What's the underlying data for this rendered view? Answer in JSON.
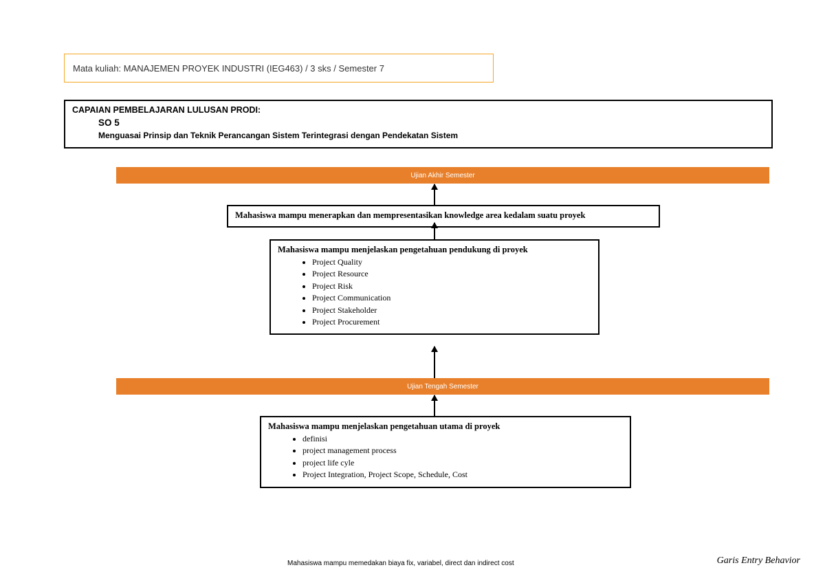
{
  "colors": {
    "header_border": "#f5a623",
    "orange_bar_bg": "#e8802b",
    "orange_bar_text": "#ffffff",
    "box_border": "#000000",
    "page_bg": "#ffffff"
  },
  "header": {
    "course_line": "Mata kuliah: MANAJEMEN PROYEK INDUSTRI (IEG463) / 3 sks / Semester 7"
  },
  "cplp": {
    "title": "CAPAIAN PEMBELAJARAN LULUSAN PRODI:",
    "so": "SO 5",
    "desc": "Menguasai Prinsip dan Teknik Perancangan Sistem Terintegrasi dengan Pendekatan Sistem"
  },
  "bars": {
    "uas": "Ujian Akhir Semester",
    "uts": "Ujian Tengah Semester"
  },
  "boxes": {
    "apply": {
      "text": "Mahasiswa mampu menerapkan dan mempresentasikan knowledge area kedalam suatu proyek"
    },
    "support": {
      "title": "Mahasiswa mampu menjelaskan pengetahuan pendukung di proyek",
      "bullets": [
        "Project Quality",
        "Project Resource",
        "Project Risk",
        "Project Communication",
        "Project Stakeholder",
        "Project Procurement"
      ]
    },
    "main": {
      "title": "Mahasiswa mampu menjelaskan pengetahuan utama di proyek",
      "bullets": [
        "definisi",
        "project management process",
        "project life cyle",
        "Project Integration, Project Scope, Schedule, Cost"
      ]
    }
  },
  "footer": {
    "left": "Mahasiswa mampu memedakan biaya fix, variabel, direct dan indirect cost",
    "right": "Garis Entry Behavior"
  },
  "diagram": {
    "type": "flowchart",
    "flow_direction": "bottom-to-top",
    "arrow_color": "#000000",
    "fontsize_box": 12.5,
    "fontsize_bar": 10
  }
}
